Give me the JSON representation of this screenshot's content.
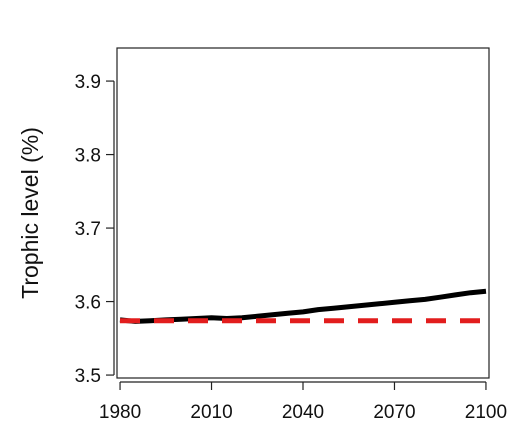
{
  "chart_data": {
    "type": "line",
    "title": "",
    "xlabel": "",
    "ylabel": "Trophic level (%)",
    "xlim": [
      1979,
      2101
    ],
    "ylim": [
      3.496,
      3.945
    ],
    "x_ticks": [
      1980,
      2010,
      2040,
      2070,
      2100
    ],
    "y_ticks": [
      3.5,
      3.6,
      3.7,
      3.8,
      3.9
    ],
    "x_tick_labels": [
      "1980",
      "2010",
      "2040",
      "2070",
      "2100"
    ],
    "y_tick_labels": [
      "3.5",
      "3.6",
      "3.7",
      "3.8",
      "3.9"
    ],
    "grid": false,
    "series": [
      {
        "color": "#000000",
        "style": "solid",
        "x": [
          1980,
          1985,
          1990,
          1995,
          2000,
          2005,
          2010,
          2015,
          2020,
          2025,
          2030,
          2035,
          2040,
          2045,
          2050,
          2055,
          2060,
          2065,
          2070,
          2075,
          2080,
          2085,
          2090,
          2095,
          2100
        ],
        "y": [
          3.575,
          3.573,
          3.574,
          3.575,
          3.576,
          3.577,
          3.578,
          3.577,
          3.578,
          3.58,
          3.582,
          3.584,
          3.586,
          3.589,
          3.591,
          3.593,
          3.595,
          3.597,
          3.599,
          3.601,
          3.603,
          3.606,
          3.609,
          3.612,
          3.614
        ]
      },
      {
        "color": "#e21d1d",
        "style": "dashed",
        "x": [
          1980,
          2100
        ],
        "y": [
          3.574,
          3.574
        ]
      }
    ]
  }
}
